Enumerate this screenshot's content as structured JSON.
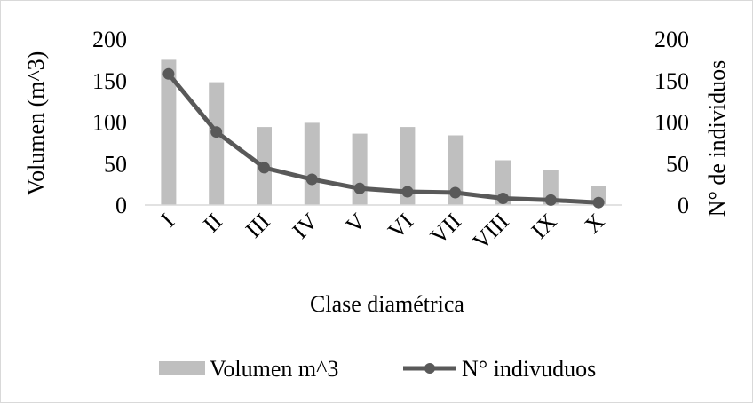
{
  "chart_data": {
    "type": "bar",
    "categories": [
      "I",
      "II",
      "III",
      "IV",
      "V",
      "VI",
      "VII",
      "VIII",
      "IX",
      "X"
    ],
    "series": [
      {
        "name": "Volumen m^3",
        "type": "bar",
        "axis": "left",
        "color": "#bfbfbf",
        "values": [
          175,
          148,
          94,
          99,
          86,
          94,
          84,
          54,
          42,
          23
        ]
      },
      {
        "name": "N° indivuduos",
        "type": "line",
        "axis": "right",
        "color": "#595959",
        "values": [
          158,
          88,
          45,
          31,
          20,
          16,
          15,
          8,
          6,
          3
        ]
      }
    ],
    "xlabel": "Clase diamétrica",
    "ylabel": "Volumen (m^3)",
    "y2label": "N° de individuos",
    "ylim": [
      0,
      200
    ],
    "y2lim": [
      0,
      200
    ],
    "yticks": [
      "0",
      "50",
      "100",
      "150",
      "200"
    ],
    "y2ticks": [
      "0",
      "50",
      "100",
      "150",
      "200"
    ],
    "grid": false,
    "legend": "bottom"
  }
}
